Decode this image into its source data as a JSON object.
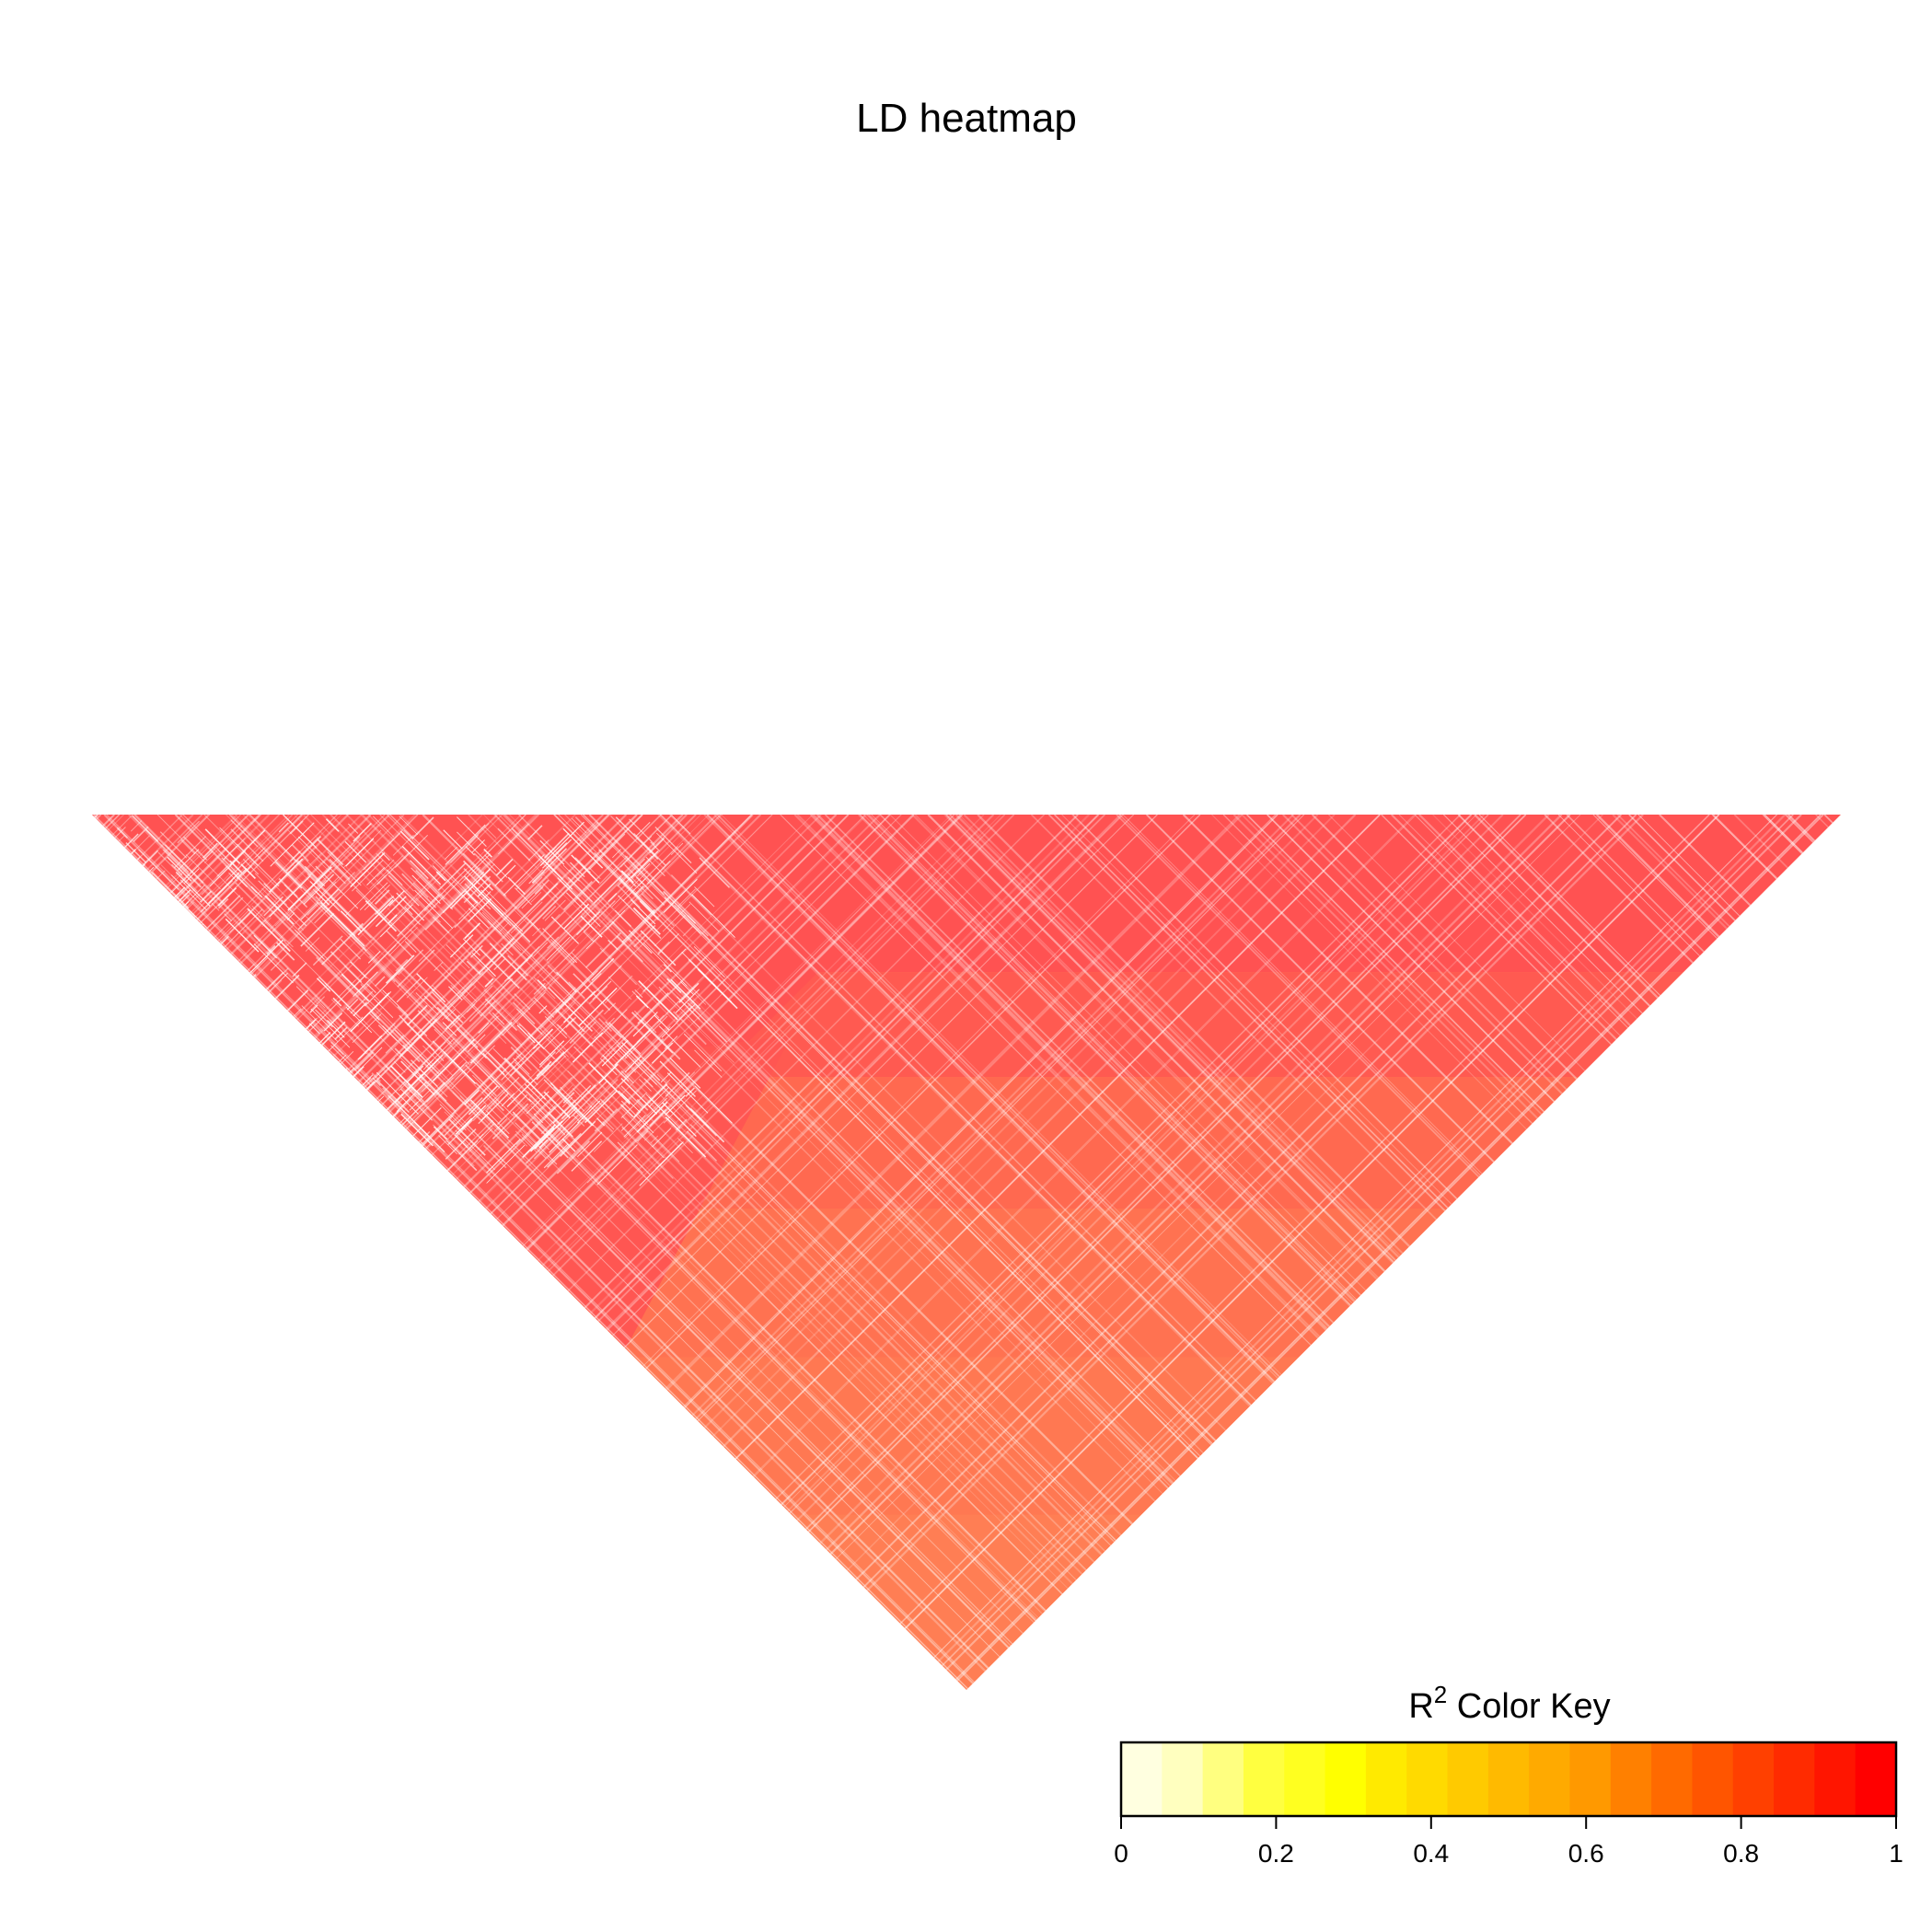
{
  "chart_data": {
    "type": "heatmap",
    "title": "LD heatmap",
    "layout": "triangle-pointing-down",
    "description_values": {
      "snp_count_approx": 200,
      "value_bands": [
        {
          "region": "upper-left fine-structured block",
          "r2": 0.86,
          "pattern": "speckled"
        },
        {
          "region": "top central block",
          "r2": 0.86
        },
        {
          "region": "top right block",
          "r2": 0.86
        },
        {
          "region": "middle band",
          "r2": 0.8
        },
        {
          "region": "lower-middle band",
          "r2": 0.75
        },
        {
          "region": "bottom apex region",
          "r2": 0.72
        }
      ]
    },
    "color_key": {
      "title_main": "R",
      "title_sup": "2",
      "title_rest": " Color Key",
      "range": [
        0,
        1
      ],
      "ticks": [
        "0",
        "0.2",
        "0.4",
        "0.6",
        "0.8",
        "1"
      ],
      "tick_values": [
        0,
        0.2,
        0.4,
        0.6,
        0.8,
        1
      ],
      "colors": [
        "#FFFFE0",
        "#FFFFBF",
        "#FFFF80",
        "#FFFF40",
        "#FFFF20",
        "#FFFF00",
        "#FFEA00",
        "#FFDA00",
        "#FFCA00",
        "#FFBA00",
        "#FFAA00",
        "#FF9900",
        "#FF8000",
        "#FF6A00",
        "#FF5500",
        "#FF4000",
        "#FF2B00",
        "#FF1500",
        "#FF0000"
      ]
    }
  }
}
